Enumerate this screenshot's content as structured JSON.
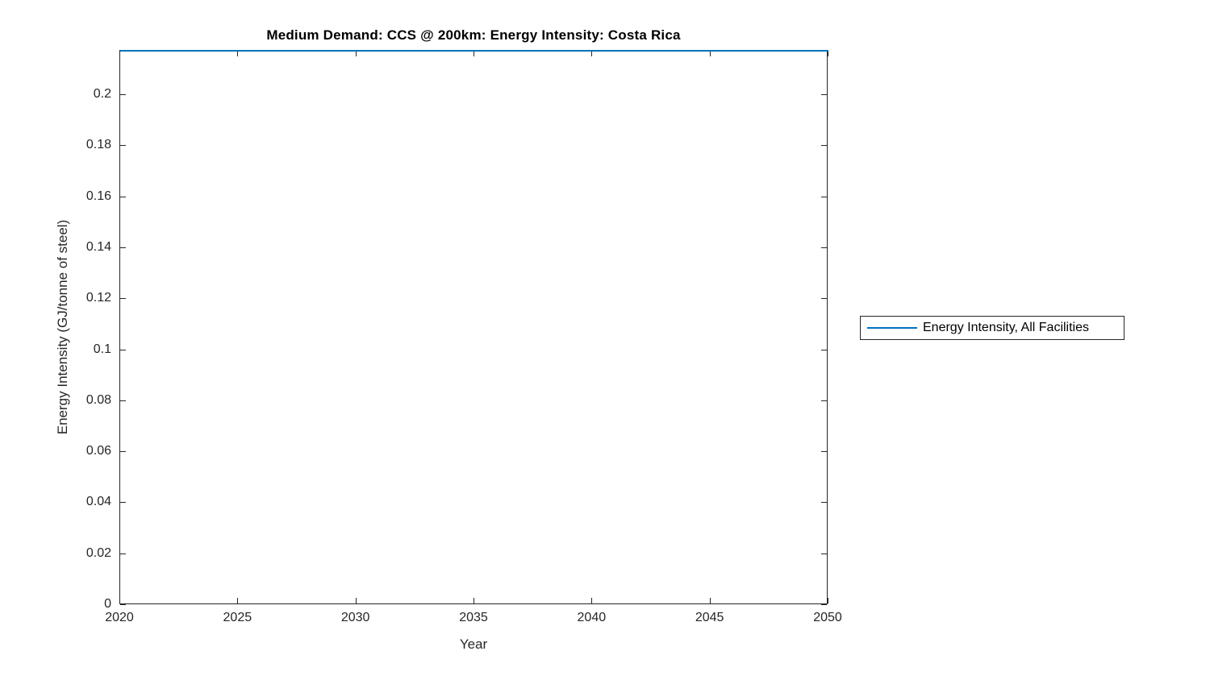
{
  "chart_data": {
    "type": "line",
    "title": "Medium Demand: CCS @ 200km: Energy Intensity: Costa Rica",
    "xlabel": "Year",
    "ylabel": "Energy Intensity (GJ/tonne of steel)",
    "xlim": [
      2020,
      2050
    ],
    "ylim": [
      0,
      0.2174
    ],
    "xticks": [
      2020,
      2025,
      2030,
      2035,
      2040,
      2045,
      2050
    ],
    "xtick_labels": [
      "2020",
      "2025",
      "2030",
      "2035",
      "2040",
      "2045",
      "2050"
    ],
    "yticks": [
      0,
      0.02,
      0.04,
      0.06,
      0.08,
      0.1,
      0.12,
      0.14,
      0.16,
      0.18,
      0.2
    ],
    "ytick_labels": [
      "0",
      "0.02",
      "0.04",
      "0.06",
      "0.08",
      "0.1",
      "0.12",
      "0.14",
      "0.16",
      "0.18",
      "0.2"
    ],
    "grid": false,
    "legend": {
      "position": "right-outside",
      "entries": [
        {
          "label": "Energy Intensity, All Facilities",
          "color": "#0072BD"
        }
      ]
    },
    "series": [
      {
        "name": "Energy Intensity, All Facilities",
        "color": "#0072BD",
        "x": [
          2020,
          2050
        ],
        "y": [
          0.2174,
          0.2174
        ]
      }
    ]
  },
  "colors": {
    "line_blue": "#0072BD",
    "axis": "#262626",
    "background": "#ffffff"
  }
}
